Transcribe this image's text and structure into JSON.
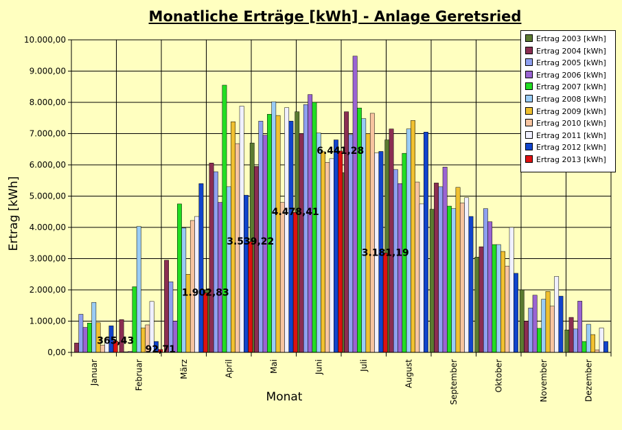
{
  "chart_data": {
    "type": "bar",
    "title": "Monatliche Erträge [kWh] - Anlage Geretsried",
    "xlabel": "Monat",
    "ylabel": "Ertrag [kWh]",
    "ylim": [
      0,
      10000
    ],
    "yticks": [
      {
        "value": 0,
        "label": "0,00"
      },
      {
        "value": 1000,
        "label": "1.000,00"
      },
      {
        "value": 2000,
        "label": "2.000,00"
      },
      {
        "value": 3000,
        "label": "3.000,00"
      },
      {
        "value": 4000,
        "label": "4.000,00"
      },
      {
        "value": 5000,
        "label": "5.000,00"
      },
      {
        "value": 6000,
        "label": "6.000,00"
      },
      {
        "value": 7000,
        "label": "7.000,00"
      },
      {
        "value": 8000,
        "label": "8.000,00"
      },
      {
        "value": 9000,
        "label": "9.000,00"
      },
      {
        "value": 10000,
        "label": "10.000,00"
      }
    ],
    "grid": true,
    "legend_position": "top-right",
    "categories": [
      "Januar",
      "Februar",
      "März",
      "April",
      "Mai",
      "Juni",
      "Juli",
      "August",
      "September",
      "Oktober",
      "November",
      "Dezember"
    ],
    "series": [
      {
        "name": "Ertrag 2003 [kWh]",
        "color": "#5a7a30",
        "values": [
          null,
          null,
          null,
          2000,
          6700,
          7700,
          5750,
          6800,
          4580,
          3050,
          2000,
          720
        ]
      },
      {
        "name": "Ertrag 2004 [kWh]",
        "color": "#8b2e52",
        "values": [
          300,
          1050,
          2950,
          6060,
          5950,
          7000,
          7700,
          7150,
          5420,
          3380,
          1000,
          1120
        ]
      },
      {
        "name": "Ertrag 2005 [kWh]",
        "color": "#8fa0f0",
        "values": [
          1220,
          20,
          2260,
          5780,
          7400,
          7930,
          6970,
          5850,
          5300,
          4600,
          1420,
          750
        ]
      },
      {
        "name": "Ertrag 2006 [kWh]",
        "color": "#9a64d2",
        "values": [
          800,
          30,
          1000,
          4800,
          6950,
          8250,
          9480,
          5400,
          5930,
          4180,
          1830,
          1640
        ]
      },
      {
        "name": "Ertrag 2007 [kWh]",
        "color": "#22dd22",
        "values": [
          940,
          2100,
          4750,
          8550,
          7620,
          8000,
          7820,
          6370,
          4680,
          3450,
          770,
          350
        ]
      },
      {
        "name": "Ertrag 2008 [kWh]",
        "color": "#99ccf5",
        "values": [
          1600,
          4030,
          3980,
          5300,
          8020,
          7020,
          7480,
          7150,
          4600,
          3450,
          1700,
          900
        ]
      },
      {
        "name": "Ertrag 2009 [kWh]",
        "color": "#f0c030",
        "values": [
          950,
          780,
          2500,
          7380,
          7580,
          6420,
          7000,
          7420,
          5280,
          3230,
          1950,
          570
        ]
      },
      {
        "name": "Ertrag 2010 [kWh]",
        "color": "#f7c4a0",
        "values": [
          230,
          880,
          4220,
          6680,
          4800,
          6080,
          7650,
          5450,
          4780,
          2760,
          1480,
          80
        ]
      },
      {
        "name": "Ertrag 2011 [kWh]",
        "color": "#f0f0ff",
        "values": [
          450,
          1630,
          4350,
          7880,
          7830,
          6200,
          6380,
          4750,
          4950,
          4000,
          2430,
          780
        ]
      },
      {
        "name": "Ertrag 2012 [kWh]",
        "color": "#1144cc",
        "values": [
          850,
          350,
          5400,
          5030,
          7400,
          6800,
          6430,
          7050,
          4350,
          2530,
          1800,
          350
        ]
      },
      {
        "name": "Ertrag 2013 [kWh]",
        "color": "#dd1111",
        "values": [
          365.43,
          92.71,
          1902.83,
          3539.22,
          4478.41,
          6441.28,
          3181.19,
          null,
          null,
          null,
          null,
          null
        ]
      }
    ],
    "data_labels": [
      "365,43",
      "92,71",
      "1.902,83",
      "3.539,22",
      "4.478,41",
      "6.441,28",
      "3.181,19",
      null,
      null,
      null,
      null,
      null
    ]
  }
}
